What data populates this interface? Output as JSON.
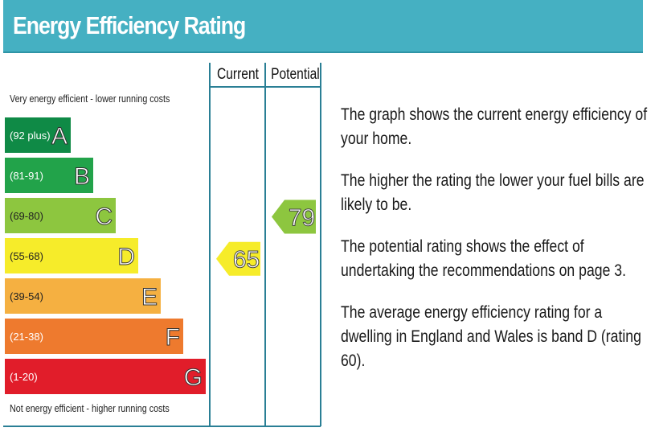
{
  "header": {
    "title": "Energy Efficiency Rating"
  },
  "chart_data": {
    "type": "bar",
    "title": "Energy Efficiency Rating",
    "top_label": "Very energy efficient - lower running costs",
    "bottom_label": "Not energy efficient - higher running costs",
    "columns": [
      "Current",
      "Potential"
    ],
    "bands": [
      {
        "letter": "A",
        "range": "(92 plus)",
        "min": 92,
        "max": 100,
        "color": "#0f8a46"
      },
      {
        "letter": "B",
        "range": "(81-91)",
        "min": 81,
        "max": 91,
        "color": "#22a34a"
      },
      {
        "letter": "C",
        "range": "(69-80)",
        "min": 69,
        "max": 80,
        "color": "#8dc63f"
      },
      {
        "letter": "D",
        "range": "(55-68)",
        "min": 55,
        "max": 68,
        "color": "#f6ec2a"
      },
      {
        "letter": "E",
        "range": "(39-54)",
        "min": 39,
        "max": 54,
        "color": "#f5b041"
      },
      {
        "letter": "F",
        "range": "(21-38)",
        "min": 21,
        "max": 38,
        "color": "#ee7a2e"
      },
      {
        "letter": "G",
        "range": "(1-20)",
        "min": 1,
        "max": 20,
        "color": "#e11d2a"
      }
    ],
    "ratings": [
      {
        "column": "Current",
        "value": 65,
        "band": "D",
        "color": "#f6ec2a"
      },
      {
        "column": "Potential",
        "value": 79,
        "band": "C",
        "color": "#8dc63f"
      }
    ]
  },
  "info": {
    "paragraphs": [
      "The graph shows the current energy efficiency of your home.",
      "The higher the rating the lower your fuel bills are likely to be.",
      "The potential rating shows the effect of undertaking the recommendations on page 3.",
      "The average energy efficiency rating for a dwelling in England and Wales is band D (rating 60)."
    ]
  }
}
